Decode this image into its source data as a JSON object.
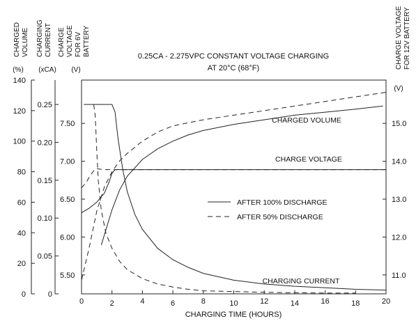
{
  "chart_data": {
    "type": "line",
    "title_line1": "0.25CA - 2.275VPC CONSTANT VOLTAGE CHARGING",
    "title_line2": "AT 20°C (68°F)",
    "xlabel": "CHARGING TIME (HOURS)",
    "xlim": [
      0,
      20
    ],
    "xticks": [
      "0",
      "2",
      "4",
      "6",
      "8",
      "10",
      "12",
      "14",
      "16",
      "18",
      "20"
    ],
    "axes": {
      "volume": {
        "label_lines": [
          "CHARGED",
          "VOLUME"
        ],
        "unit": "(%)",
        "range": [
          0,
          140
        ],
        "ticks": [
          "0",
          "20",
          "40",
          "60",
          "80",
          "100",
          "120",
          "140"
        ]
      },
      "current": {
        "label_lines": [
          "CHARGING",
          "CURRENT"
        ],
        "unit": "(xCA)",
        "range": [
          0,
          0.25
        ],
        "ticks": [
          "0",
          "0.05",
          "0.10",
          "0.15",
          "0.20",
          "0.25"
        ]
      },
      "voltage6": {
        "label_lines": [
          "CHARGE",
          "VOLTAGE",
          "FOR 6V",
          "BATTERY"
        ],
        "unit": "(V)",
        "range": [
          5.25,
          7.75
        ],
        "ticks": [
          "5.50",
          "6.00",
          "6.50",
          "7.00",
          "7.50"
        ]
      },
      "voltage12": {
        "label_lines": [
          "CHARGE VOLTAGE",
          "FOR 12V BATTERY"
        ],
        "unit": "(V)",
        "range": [
          10.5,
          15.5
        ],
        "ticks": [
          "11.0",
          "12.0",
          "13.0",
          "14.0",
          "15.0"
        ]
      }
    },
    "legend": {
      "position": "center-right",
      "items": [
        {
          "label": "AFTER 100% DISCHARGE",
          "dash": "solid"
        },
        {
          "label": "AFTER 50% DISCHARGE",
          "dash": "dashed"
        }
      ]
    },
    "annotations": {
      "charged_volume": "CHARGED VOLUME",
      "charge_voltage": "CHARGE VOLTAGE",
      "charging_current": "CHARGING CURRENT"
    },
    "series": [
      {
        "name": "CHARGED VOLUME",
        "condition": "AFTER 100% DISCHARGE",
        "axis": "volume",
        "dash": "solid",
        "x": [
          1.3,
          2.0,
          2.5,
          3.0,
          4.0,
          5.0,
          6.0,
          7.0,
          8.0,
          10.0,
          12.0,
          14.0,
          16.0,
          18.0,
          19.8
        ],
        "y": [
          32,
          55,
          68,
          77,
          88,
          95,
          100,
          104,
          107,
          111,
          114,
          117,
          119,
          121,
          123
        ]
      },
      {
        "name": "CHARGED VOLUME",
        "condition": "AFTER 50% DISCHARGE",
        "axis": "volume",
        "dash": "dashed",
        "x": [
          0,
          0.5,
          1.0,
          1.5,
          2.0,
          2.5,
          3.0,
          4.0,
          5.0,
          6.0,
          7.0,
          8.0,
          10.0,
          12.0,
          14.0,
          16.0,
          18.0,
          20.0
        ],
        "y": [
          9,
          30,
          54,
          70,
          80,
          87,
          92,
          100,
          106,
          110,
          112,
          114,
          117,
          120,
          123,
          126,
          129,
          132
        ]
      },
      {
        "name": "CHARGE VOLTAGE",
        "condition": "AFTER 100% DISCHARGE",
        "axis": "voltage6",
        "dash": "solid",
        "x": [
          0,
          0.5,
          1.0,
          1.5,
          1.8,
          2.0,
          2.2,
          4.0,
          8.0,
          12.0,
          16.0,
          20.0
        ],
        "y": [
          6.32,
          6.38,
          6.46,
          6.58,
          6.72,
          6.84,
          6.89,
          6.89,
          6.89,
          6.89,
          6.89,
          6.89
        ]
      },
      {
        "name": "CHARGE VOLTAGE",
        "condition": "AFTER 50% DISCHARGE",
        "axis": "voltage6",
        "dash": "dashed",
        "x": [
          0,
          0.3,
          0.6,
          0.9,
          1.1,
          1.4,
          2.0,
          20.0
        ],
        "y": [
          6.65,
          6.72,
          6.82,
          6.9,
          6.9,
          6.89,
          6.89,
          6.89
        ]
      },
      {
        "name": "CHARGING CURRENT",
        "condition": "AFTER 100% DISCHARGE",
        "axis": "current",
        "dash": "solid",
        "x": [
          0.15,
          2.0,
          2.2,
          2.4,
          2.7,
          3.0,
          3.5,
          4.0,
          5.0,
          6.0,
          7.0,
          8.0,
          10.0,
          12.0,
          14.0,
          16.0,
          18.0,
          20.0
        ],
        "y": [
          0.25,
          0.25,
          0.24,
          0.205,
          0.165,
          0.135,
          0.105,
          0.085,
          0.06,
          0.045,
          0.035,
          0.027,
          0.018,
          0.013,
          0.01,
          0.008,
          0.006,
          0.005
        ]
      },
      {
        "name": "CHARGING CURRENT",
        "condition": "AFTER 50% DISCHARGE",
        "axis": "current",
        "dash": "dashed",
        "x": [
          0.8,
          0.9,
          1.0,
          1.1,
          1.3,
          1.6,
          2.0,
          2.5,
          3.0,
          4.0,
          5.0,
          6.0,
          7.0,
          8.0,
          10.0,
          12.0,
          14.0,
          16.0,
          18.0
        ],
        "y": [
          0.25,
          0.235,
          0.19,
          0.15,
          0.11,
          0.08,
          0.06,
          0.043,
          0.032,
          0.02,
          0.013,
          0.009,
          0.006,
          0.004,
          0.003,
          0.002,
          0.0015,
          0.001,
          0.001
        ]
      }
    ]
  }
}
